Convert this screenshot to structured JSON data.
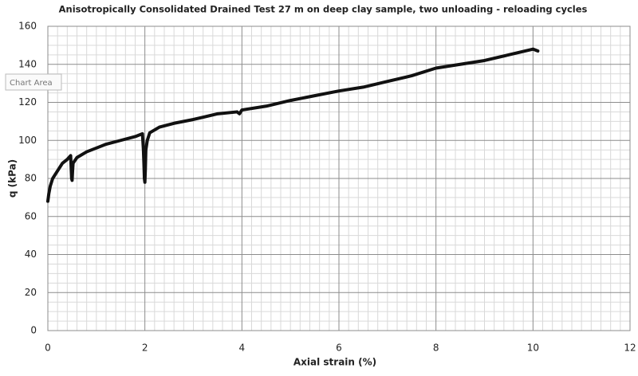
{
  "chart_data": {
    "type": "line",
    "title": "Anisotropically Consolidated Drained Test 27 m on deep clay sample, two unloading - reloading cycles",
    "x_label": "Axial strain (%)",
    "y_label": "q (kPa)",
    "tooltip": "Chart Area",
    "x": [
      0,
      0.02,
      0.05,
      0.1,
      0.2,
      0.3,
      0.4,
      0.47,
      0.48,
      0.49,
      0.5,
      0.51,
      0.52,
      0.6,
      0.8,
      1.0,
      1.2,
      1.5,
      1.8,
      1.95,
      1.97,
      1.98,
      1.99,
      2.0,
      2.01,
      2.02,
      2.05,
      2.1,
      2.3,
      2.6,
      3.0,
      3.5,
      3.9,
      3.95,
      4.0,
      4.5,
      5.0,
      5.5,
      6.0,
      6.5,
      7.0,
      7.5,
      8.0,
      8.5,
      9.0,
      9.5,
      10.0,
      10.1
    ],
    "values": [
      68,
      72,
      76,
      80,
      84,
      88,
      90,
      92,
      86,
      80,
      79,
      84,
      88,
      91,
      94,
      96,
      98,
      100,
      102,
      103.5,
      95,
      88,
      80,
      78,
      85,
      95,
      100,
      104,
      107,
      109,
      111,
      114,
      115,
      114,
      116,
      118,
      121,
      123.5,
      126,
      128,
      131,
      134,
      138,
      140,
      142,
      145,
      148,
      147
    ],
    "color": "#111111",
    "xlim": [
      0,
      12
    ],
    "xticks": [
      0,
      2,
      4,
      6,
      8,
      10,
      12
    ],
    "ylim": [
      0,
      160
    ],
    "yticks": [
      0,
      20,
      40,
      60,
      80,
      100,
      120,
      140,
      160
    ],
    "grid": true,
    "minor_grid_divisions": {
      "x": 10,
      "y": 4
    }
  }
}
